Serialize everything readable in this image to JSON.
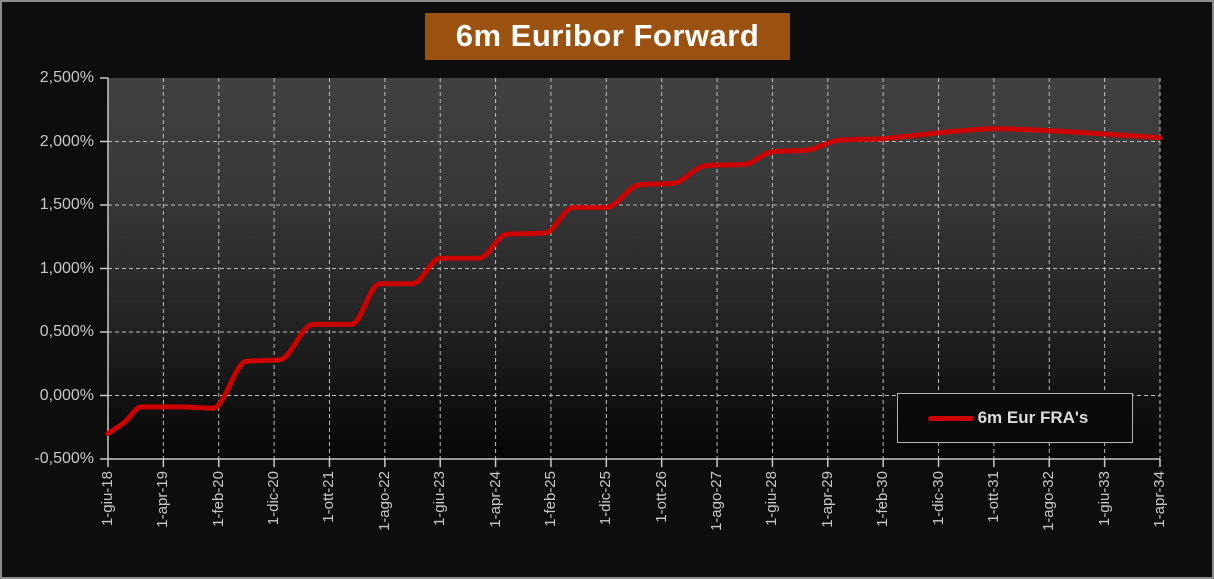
{
  "window": {
    "background": "#0d0d0d",
    "border_color": "#8c8c8c"
  },
  "title": {
    "text": "6m Euribor Forward"
  },
  "legend": {
    "label": "6m Eur FRA's",
    "position": "inside-bottom-right"
  },
  "colors": {
    "line": "#cc0000",
    "gridline": "#bdbdbd",
    "axis": "#c8c8c8",
    "tick_label": "#c9c9c9",
    "title_bg": "#9b5210",
    "title_text": "#ffffff",
    "frame_border": "#8c8c8c",
    "background": "#0d0d0d",
    "legend_border": "#b5b5b5",
    "legend_bg": "#0a0a0a",
    "legend_text": "#dcdcdc"
  },
  "chart_data": {
    "type": "line",
    "title": "6m Euribor Forward",
    "xlabel": "",
    "ylabel": "",
    "grid": "dashed",
    "decimal_style": "comma",
    "legend_position": "inside bottom-right",
    "ylim": [
      -0.5,
      2.5
    ],
    "y_ticks": [
      {
        "label": "2,500%",
        "value": 2.5
      },
      {
        "label": "2,000%",
        "value": 2.0
      },
      {
        "label": "1,500%",
        "value": 1.5
      },
      {
        "label": "1,000%",
        "value": 1.0
      },
      {
        "label": "0,500%",
        "value": 0.5
      },
      {
        "label": "0,000%",
        "value": 0.0
      },
      {
        "label": "-0,500%",
        "value": -0.5
      }
    ],
    "x_unit": "months since 1-giu-18",
    "xlim_months": [
      0,
      190
    ],
    "x_ticks": [
      {
        "label": "1-giu-18",
        "month": 0
      },
      {
        "label": "1-apr-19",
        "month": 10
      },
      {
        "label": "1-feb-20",
        "month": 20
      },
      {
        "label": "1-dic-20",
        "month": 30
      },
      {
        "label": "1-ott-21",
        "month": 40
      },
      {
        "label": "1-ago-22",
        "month": 50
      },
      {
        "label": "1-giu-23",
        "month": 60
      },
      {
        "label": "1-apr-24",
        "month": 70
      },
      {
        "label": "1-feb-25",
        "month": 80
      },
      {
        "label": "1-dic-25",
        "month": 90
      },
      {
        "label": "1-ott-26",
        "month": 100
      },
      {
        "label": "1-ago-27",
        "month": 110
      },
      {
        "label": "1-giu-28",
        "month": 120
      },
      {
        "label": "1-apr-29",
        "month": 130
      },
      {
        "label": "1-feb-30",
        "month": 140
      },
      {
        "label": "1-dic-30",
        "month": 150
      },
      {
        "label": "1-ott-31",
        "month": 160
      },
      {
        "label": "1-ago-32",
        "month": 170
      },
      {
        "label": "1-giu-33",
        "month": 180
      },
      {
        "label": "1-apr-34",
        "month": 190
      }
    ],
    "series": [
      {
        "name": "6m Eur FRA's",
        "color": "#cc0000",
        "points_unit": "[month, rate_pct]",
        "points": [
          [
            0,
            -0.3
          ],
          [
            3,
            -0.21
          ],
          [
            6,
            -0.09
          ],
          [
            13,
            -0.09
          ],
          [
            19,
            -0.1
          ],
          [
            25,
            0.27
          ],
          [
            31,
            0.28
          ],
          [
            37,
            0.56
          ],
          [
            44,
            0.56
          ],
          [
            49,
            0.88
          ],
          [
            55,
            0.88
          ],
          [
            60,
            1.08
          ],
          [
            67,
            1.08
          ],
          [
            72,
            1.27
          ],
          [
            79,
            1.28
          ],
          [
            84,
            1.48
          ],
          [
            90,
            1.48
          ],
          [
            96,
            1.66
          ],
          [
            102,
            1.67
          ],
          [
            108,
            1.81
          ],
          [
            115,
            1.82
          ],
          [
            120,
            1.92
          ],
          [
            126,
            1.93
          ],
          [
            132,
            2.01
          ],
          [
            139,
            2.02
          ],
          [
            146,
            2.05
          ],
          [
            153,
            2.08
          ],
          [
            160,
            2.1
          ],
          [
            168,
            2.09
          ],
          [
            176,
            2.07
          ],
          [
            183,
            2.05
          ],
          [
            190,
            2.03
          ]
        ]
      }
    ]
  }
}
